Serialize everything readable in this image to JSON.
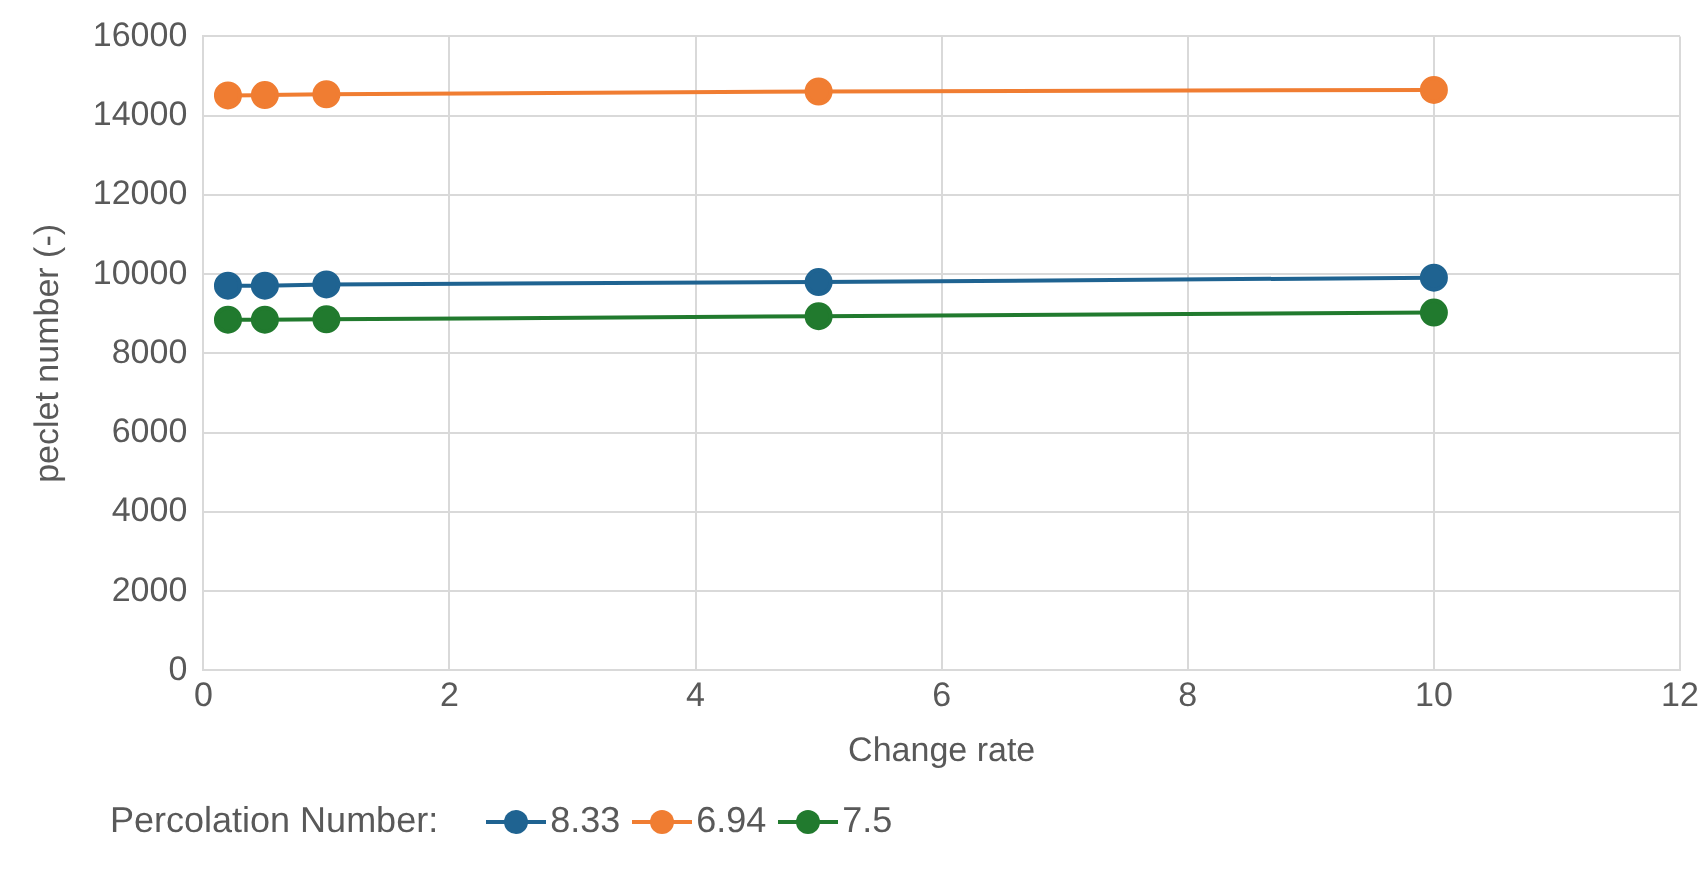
{
  "chart_data": {
    "type": "line",
    "xlabel": "Change rate",
    "ylabel": "peclet number (-)",
    "legend_title": "Percolation Number:",
    "x": [
      0.2,
      0.5,
      1,
      5,
      10
    ],
    "series": [
      {
        "name": "8.33",
        "color": "#1f6391",
        "values": [
          9710,
          9710,
          9740,
          9800,
          9910
        ]
      },
      {
        "name": "6.94",
        "color": "#f07d32",
        "values": [
          14510,
          14520,
          14540,
          14610,
          14650
        ]
      },
      {
        "name": "7.5",
        "color": "#217a2e",
        "values": [
          8850,
          8850,
          8860,
          8940,
          9030
        ]
      }
    ],
    "xlim": [
      0,
      12
    ],
    "xticks": [
      0,
      2,
      4,
      6,
      8,
      10,
      12
    ],
    "ylim": [
      0,
      16000
    ],
    "yticks": [
      0,
      2000,
      4000,
      6000,
      8000,
      10000,
      12000,
      14000,
      16000
    ],
    "grid": true,
    "legend": "bottom",
    "marker": "circle",
    "line_style": "solid"
  }
}
